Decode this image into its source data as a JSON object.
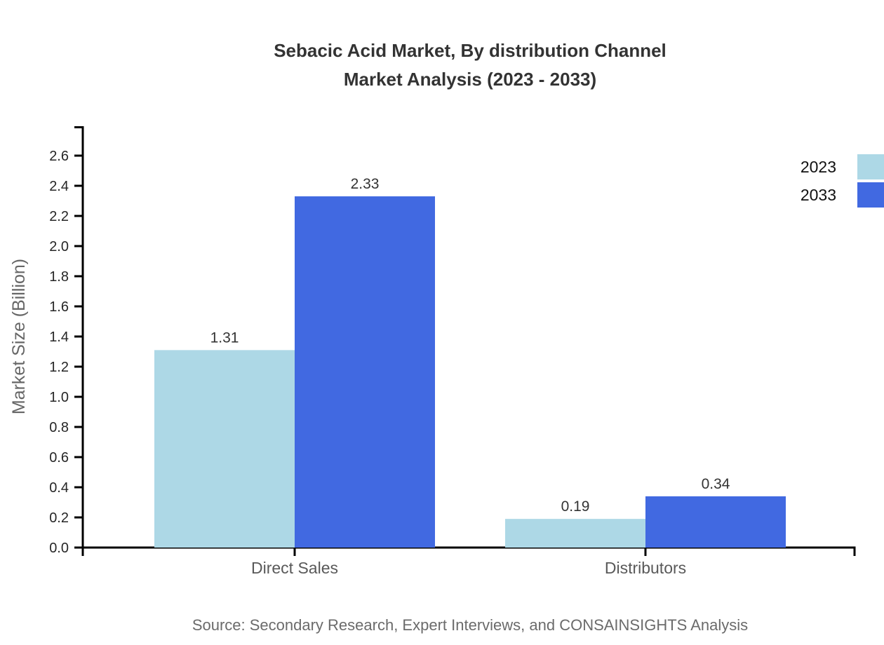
{
  "title": {
    "line1": "Sebacic Acid Market, By distribution Channel",
    "line2": "Market Analysis (2023 - 2033)"
  },
  "footer": {
    "source": "Source: Secondary Research, Expert Interviews, and CONSAINSIGHTS Analysis"
  },
  "chart_data": {
    "type": "bar",
    "title": "Sebacic Acid Market, By distribution Channel Market Analysis (2023 - 2033)",
    "categories": [
      "Direct Sales",
      "Distributors"
    ],
    "series": [
      {
        "name": "2023",
        "color": "#ADD8E6",
        "values": [
          1.31,
          0.19
        ]
      },
      {
        "name": "2033",
        "color": "#4169E1",
        "values": [
          2.33,
          0.34
        ]
      }
    ],
    "xlabel": "",
    "ylabel": "Market Size (Billion)",
    "ylim": [
      0.0,
      2.6
    ],
    "ytick_step": 0.2,
    "ytick_labels": [
      "0.0",
      "0.2",
      "0.4",
      "0.6",
      "0.8",
      "1.0",
      "1.2",
      "1.4",
      "1.6",
      "1.8",
      "2.0",
      "2.2",
      "2.4",
      "2.6"
    ],
    "value_labels": [
      "1.31",
      "2.33",
      "0.19",
      "0.34"
    ],
    "grid": false,
    "legend_position": "top-right",
    "colors": {
      "axis": "#000000",
      "tick_label": "#262626",
      "category_label": "#595959",
      "value_label": "#333333",
      "ylabel": "#666666"
    }
  }
}
